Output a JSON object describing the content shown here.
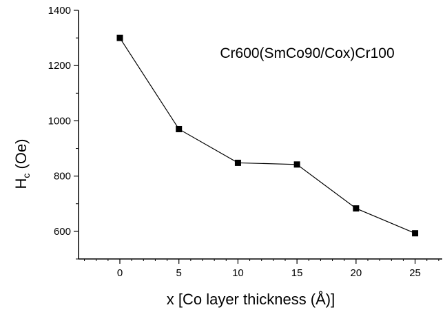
{
  "chart_data": {
    "type": "line",
    "annotation": "Cr600(SmCo90/Cox)Cr100",
    "xlabel": "x [Co layer thickness (Å)]",
    "ylabel": {
      "main": "H",
      "subscript": "c",
      "suffix": " (Oe)"
    },
    "xlim": [
      -3.5,
      27.3
    ],
    "ylim": [
      500,
      1400
    ],
    "x_ticks": [
      0,
      5,
      10,
      15,
      20,
      25
    ],
    "x_tick_labels": [
      "0",
      "5",
      "10",
      "15",
      "20",
      "25"
    ],
    "y_ticks": [
      600,
      800,
      1000,
      1200,
      1400
    ],
    "y_tick_labels": [
      "600",
      "800",
      "1000",
      "1200",
      "1400"
    ],
    "grid": false,
    "marker": "square",
    "series": [
      {
        "x": [
          0,
          5,
          10,
          15,
          20,
          25
        ],
        "y": [
          1300,
          970,
          848,
          842,
          683,
          593
        ]
      }
    ],
    "colors": {
      "line": "#000000",
      "marker": "#000000",
      "axis": "#000000"
    }
  }
}
